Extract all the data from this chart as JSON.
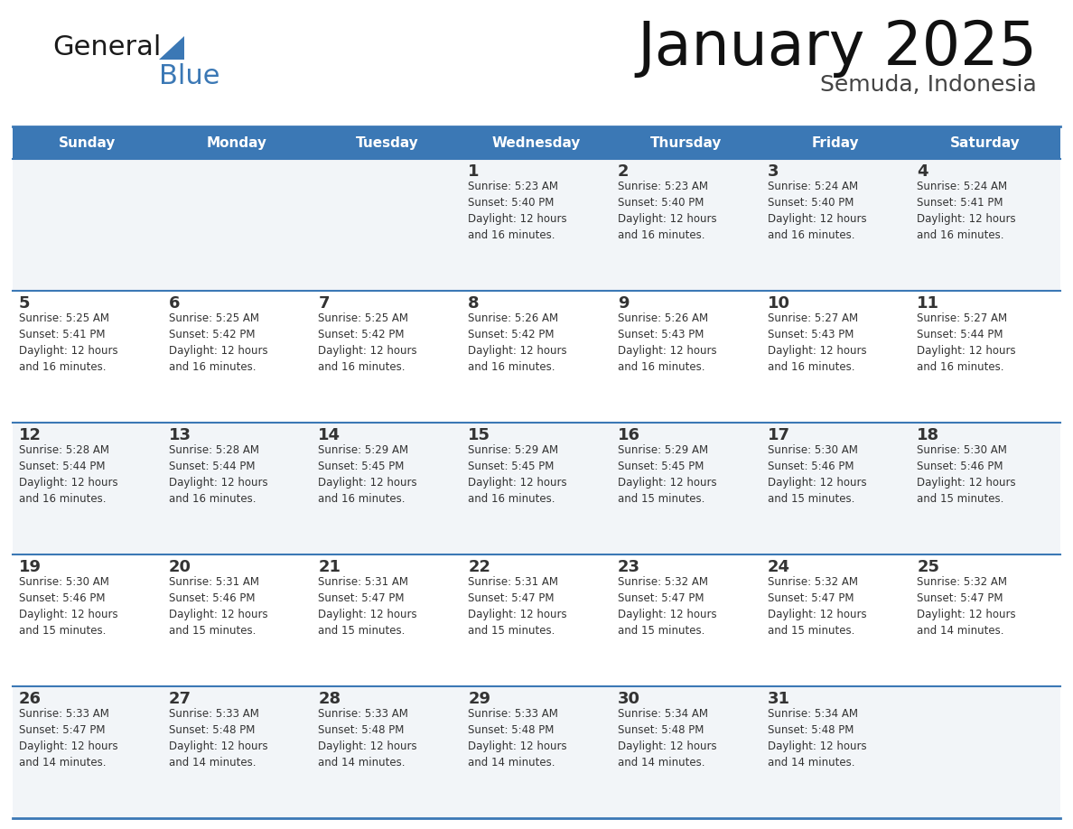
{
  "title": "January 2025",
  "subtitle": "Semuda, Indonesia",
  "header_color": "#3b78b5",
  "header_text_color": "#ffffff",
  "cell_bg_odd": "#f2f5f8",
  "cell_bg_even": "#ffffff",
  "border_color": "#3b78b5",
  "day_headers": [
    "Sunday",
    "Monday",
    "Tuesday",
    "Wednesday",
    "Thursday",
    "Friday",
    "Saturday"
  ],
  "text_color": "#333333",
  "logo_general_color": "#1a1a1a",
  "logo_blue_color": "#3b78b5",
  "logo_triangle_color": "#3b78b5",
  "calendar": [
    [
      {
        "day": "",
        "sunrise": "",
        "sunset": "",
        "daylight": ""
      },
      {
        "day": "",
        "sunrise": "",
        "sunset": "",
        "daylight": ""
      },
      {
        "day": "",
        "sunrise": "",
        "sunset": "",
        "daylight": ""
      },
      {
        "day": "1",
        "sunrise": "5:23 AM",
        "sunset": "5:40 PM",
        "daylight": "12 hours\nand 16 minutes."
      },
      {
        "day": "2",
        "sunrise": "5:23 AM",
        "sunset": "5:40 PM",
        "daylight": "12 hours\nand 16 minutes."
      },
      {
        "day": "3",
        "sunrise": "5:24 AM",
        "sunset": "5:40 PM",
        "daylight": "12 hours\nand 16 minutes."
      },
      {
        "day": "4",
        "sunrise": "5:24 AM",
        "sunset": "5:41 PM",
        "daylight": "12 hours\nand 16 minutes."
      }
    ],
    [
      {
        "day": "5",
        "sunrise": "5:25 AM",
        "sunset": "5:41 PM",
        "daylight": "12 hours\nand 16 minutes."
      },
      {
        "day": "6",
        "sunrise": "5:25 AM",
        "sunset": "5:42 PM",
        "daylight": "12 hours\nand 16 minutes."
      },
      {
        "day": "7",
        "sunrise": "5:25 AM",
        "sunset": "5:42 PM",
        "daylight": "12 hours\nand 16 minutes."
      },
      {
        "day": "8",
        "sunrise": "5:26 AM",
        "sunset": "5:42 PM",
        "daylight": "12 hours\nand 16 minutes."
      },
      {
        "day": "9",
        "sunrise": "5:26 AM",
        "sunset": "5:43 PM",
        "daylight": "12 hours\nand 16 minutes."
      },
      {
        "day": "10",
        "sunrise": "5:27 AM",
        "sunset": "5:43 PM",
        "daylight": "12 hours\nand 16 minutes."
      },
      {
        "day": "11",
        "sunrise": "5:27 AM",
        "sunset": "5:44 PM",
        "daylight": "12 hours\nand 16 minutes."
      }
    ],
    [
      {
        "day": "12",
        "sunrise": "5:28 AM",
        "sunset": "5:44 PM",
        "daylight": "12 hours\nand 16 minutes."
      },
      {
        "day": "13",
        "sunrise": "5:28 AM",
        "sunset": "5:44 PM",
        "daylight": "12 hours\nand 16 minutes."
      },
      {
        "day": "14",
        "sunrise": "5:29 AM",
        "sunset": "5:45 PM",
        "daylight": "12 hours\nand 16 minutes."
      },
      {
        "day": "15",
        "sunrise": "5:29 AM",
        "sunset": "5:45 PM",
        "daylight": "12 hours\nand 16 minutes."
      },
      {
        "day": "16",
        "sunrise": "5:29 AM",
        "sunset": "5:45 PM",
        "daylight": "12 hours\nand 15 minutes."
      },
      {
        "day": "17",
        "sunrise": "5:30 AM",
        "sunset": "5:46 PM",
        "daylight": "12 hours\nand 15 minutes."
      },
      {
        "day": "18",
        "sunrise": "5:30 AM",
        "sunset": "5:46 PM",
        "daylight": "12 hours\nand 15 minutes."
      }
    ],
    [
      {
        "day": "19",
        "sunrise": "5:30 AM",
        "sunset": "5:46 PM",
        "daylight": "12 hours\nand 15 minutes."
      },
      {
        "day": "20",
        "sunrise": "5:31 AM",
        "sunset": "5:46 PM",
        "daylight": "12 hours\nand 15 minutes."
      },
      {
        "day": "21",
        "sunrise": "5:31 AM",
        "sunset": "5:47 PM",
        "daylight": "12 hours\nand 15 minutes."
      },
      {
        "day": "22",
        "sunrise": "5:31 AM",
        "sunset": "5:47 PM",
        "daylight": "12 hours\nand 15 minutes."
      },
      {
        "day": "23",
        "sunrise": "5:32 AM",
        "sunset": "5:47 PM",
        "daylight": "12 hours\nand 15 minutes."
      },
      {
        "day": "24",
        "sunrise": "5:32 AM",
        "sunset": "5:47 PM",
        "daylight": "12 hours\nand 15 minutes."
      },
      {
        "day": "25",
        "sunrise": "5:32 AM",
        "sunset": "5:47 PM",
        "daylight": "12 hours\nand 14 minutes."
      }
    ],
    [
      {
        "day": "26",
        "sunrise": "5:33 AM",
        "sunset": "5:47 PM",
        "daylight": "12 hours\nand 14 minutes."
      },
      {
        "day": "27",
        "sunrise": "5:33 AM",
        "sunset": "5:48 PM",
        "daylight": "12 hours\nand 14 minutes."
      },
      {
        "day": "28",
        "sunrise": "5:33 AM",
        "sunset": "5:48 PM",
        "daylight": "12 hours\nand 14 minutes."
      },
      {
        "day": "29",
        "sunrise": "5:33 AM",
        "sunset": "5:48 PM",
        "daylight": "12 hours\nand 14 minutes."
      },
      {
        "day": "30",
        "sunrise": "5:34 AM",
        "sunset": "5:48 PM",
        "daylight": "12 hours\nand 14 minutes."
      },
      {
        "day": "31",
        "sunrise": "5:34 AM",
        "sunset": "5:48 PM",
        "daylight": "12 hours\nand 14 minutes."
      },
      {
        "day": "",
        "sunrise": "",
        "sunset": "",
        "daylight": ""
      }
    ]
  ]
}
